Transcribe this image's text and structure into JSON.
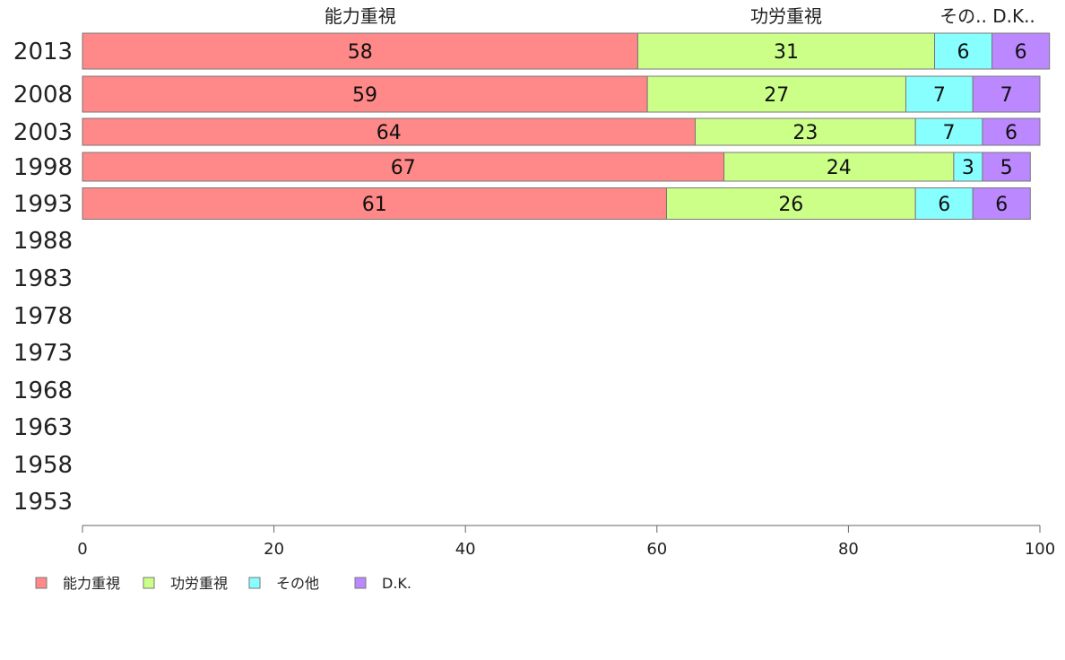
{
  "chart_data": {
    "type": "bar",
    "orientation": "horizontal",
    "stacked": true,
    "categories": [
      "2013",
      "2008",
      "2003",
      "1998",
      "1993",
      "1988",
      "1983",
      "1978",
      "1973",
      "1968",
      "1963",
      "1958",
      "1953"
    ],
    "series": [
      {
        "name": "能力重視",
        "values": [
          58,
          59,
          64,
          67,
          61,
          null,
          null,
          null,
          null,
          null,
          null,
          null,
          null
        ],
        "color": "#ff8888"
      },
      {
        "name": "功労重視",
        "values": [
          31,
          27,
          23,
          24,
          26,
          null,
          null,
          null,
          null,
          null,
          null,
          null,
          null
        ],
        "color": "#ccff88"
      },
      {
        "name": "その他",
        "values": [
          6,
          7,
          7,
          3,
          6,
          null,
          null,
          null,
          null,
          null,
          null,
          null,
          null
        ],
        "color": "#88ffff"
      },
      {
        "name": "D.K.",
        "values": [
          6,
          7,
          6,
          5,
          6,
          null,
          null,
          null,
          null,
          null,
          null,
          null,
          null
        ],
        "color": "#bb88ff"
      }
    ],
    "top_labels": [
      "能力重視",
      "功労重視",
      "その..",
      "D.K.."
    ],
    "xlim": [
      0,
      100
    ],
    "xticks": [
      0,
      20,
      40,
      60,
      80,
      100
    ],
    "grid": false,
    "legend_position": "bottom-left"
  }
}
